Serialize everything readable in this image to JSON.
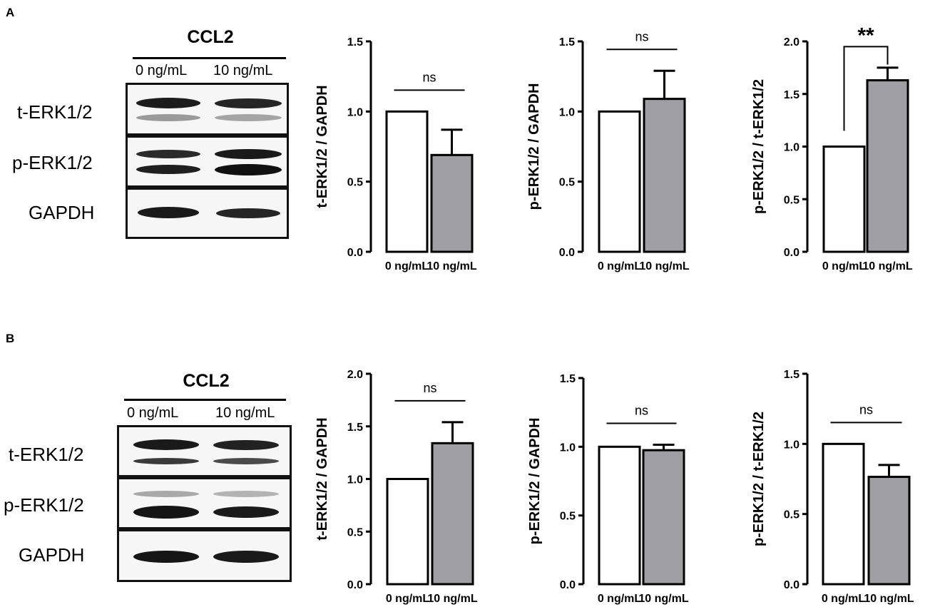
{
  "panels": [
    {
      "letter": "A",
      "blot": {
        "title": "CCL2",
        "lanes": [
          "0 ng/mL",
          "10 ng/mL"
        ],
        "rows": [
          "t-ERK1/2",
          "p-ERK1/2",
          "GAPDH"
        ]
      }
    },
    {
      "letter": "B",
      "blot": {
        "title": "CCL2",
        "lanes": [
          "0 ng/mL",
          "10 ng/mL"
        ],
        "rows": [
          "t-ERK1/2",
          "p-ERK1/2",
          "GAPDH"
        ]
      }
    }
  ],
  "chart_data": [
    {
      "type": "bar",
      "panel": "A",
      "categories": [
        "0 ng/mL",
        "10 ng/mL"
      ],
      "values": [
        1.0,
        0.69
      ],
      "errors": [
        0,
        0.18
      ],
      "ylabel": "t-ERK1/2 / GAPDH",
      "ylim": [
        0,
        1.5
      ],
      "yticks": [
        "0.0",
        "0.5",
        "1.0",
        "1.5"
      ],
      "significance": "ns",
      "bar_colors": [
        "#ffffff",
        "#9e9ea3"
      ]
    },
    {
      "type": "bar",
      "panel": "A",
      "categories": [
        "0 ng/mL",
        "10 ng/mL"
      ],
      "values": [
        1.0,
        1.09
      ],
      "errors": [
        0,
        0.2
      ],
      "ylabel": "p-ERK1/2 / GAPDH",
      "ylim": [
        0,
        1.5
      ],
      "yticks": [
        "0.0",
        "0.5",
        "1.0",
        "1.5"
      ],
      "significance": "ns",
      "bar_colors": [
        "#ffffff",
        "#9e9ea3"
      ]
    },
    {
      "type": "bar",
      "panel": "A",
      "categories": [
        "0 ng/mL",
        "10 ng/mL"
      ],
      "values": [
        1.0,
        1.63
      ],
      "errors": [
        0,
        0.12
      ],
      "ylabel": "p-ERK1/2 / t-ERK1/2",
      "ylim": [
        0,
        2.0
      ],
      "yticks": [
        "0.0",
        "0.5",
        "1.0",
        "1.5",
        "2.0"
      ],
      "significance": "**",
      "bar_colors": [
        "#ffffff",
        "#9e9ea3"
      ]
    },
    {
      "type": "bar",
      "panel": "B",
      "categories": [
        "0 ng/mL",
        "10 ng/mL"
      ],
      "values": [
        1.0,
        1.34
      ],
      "errors": [
        0,
        0.2
      ],
      "ylabel": "t-ERK1/2 / GAPDH",
      "ylim": [
        0,
        2.0
      ],
      "yticks": [
        "0.0",
        "0.5",
        "1.0",
        "1.5",
        "2.0"
      ],
      "significance": "ns",
      "bar_colors": [
        "#ffffff",
        "#9e9ea3"
      ]
    },
    {
      "type": "bar",
      "panel": "B",
      "categories": [
        "0 ng/mL",
        "10 ng/mL"
      ],
      "values": [
        1.0,
        0.975
      ],
      "errors": [
        0,
        0.04
      ],
      "ylabel": "p-ERK1/2 / GAPDH",
      "ylim": [
        0,
        1.5
      ],
      "yticks": [
        "0.0",
        "0.5",
        "1.0",
        "1.5"
      ],
      "significance": "ns",
      "bar_colors": [
        "#ffffff",
        "#9e9ea3"
      ]
    },
    {
      "type": "bar",
      "panel": "B",
      "categories": [
        "0 ng/mL",
        "10 ng/mL"
      ],
      "values": [
        1.0,
        0.765
      ],
      "errors": [
        0,
        0.085
      ],
      "ylabel": "p-ERK1/2 / t-ERK1/2",
      "ylim": [
        0,
        1.5
      ],
      "yticks": [
        "0.0",
        "0.5",
        "1.0",
        "1.5"
      ],
      "significance": "ns",
      "bar_colors": [
        "#ffffff",
        "#9e9ea3"
      ]
    }
  ]
}
